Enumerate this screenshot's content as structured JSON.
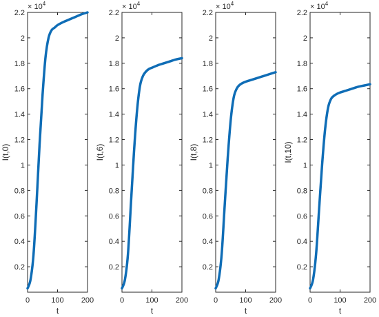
{
  "chart_data": [
    {
      "type": "line",
      "xlabel": "t",
      "ylabel": "I(t,0)",
      "xlim": [
        0,
        200
      ],
      "ylim": [
        0,
        22000
      ],
      "xticks": [
        0,
        100,
        200
      ],
      "yticks": [
        2000,
        4000,
        6000,
        8000,
        10000,
        12000,
        14000,
        16000,
        18000,
        20000,
        22000
      ],
      "ytick_labels": [
        "0.2",
        "0.4",
        "0.6",
        "0.8",
        "1",
        "1.2",
        "1.4",
        "1.6",
        "1.8",
        "2",
        "2.2"
      ],
      "y_exponent_base": "× 10",
      "y_exponent": "4",
      "grid": false,
      "series": [
        {
          "color": "#0f6db6",
          "x": [
            0,
            10,
            20,
            30,
            40,
            50,
            60,
            70,
            80,
            90,
            100,
            120,
            140,
            160,
            180,
            200
          ],
          "y": [
            300,
            1000,
            3000,
            7000,
            11600,
            15500,
            18500,
            20000,
            20600,
            20800,
            21000,
            21250,
            21450,
            21650,
            21850,
            22000
          ]
        }
      ]
    },
    {
      "type": "line",
      "xlabel": "t",
      "ylabel": "I(t,6)",
      "xlim": [
        0,
        200
      ],
      "ylim": [
        0,
        22000
      ],
      "xticks": [
        0,
        100,
        200
      ],
      "yticks": [
        2000,
        4000,
        6000,
        8000,
        10000,
        12000,
        14000,
        16000,
        18000,
        20000,
        22000
      ],
      "ytick_labels": [
        "0.2",
        "0.4",
        "0.6",
        "0.8",
        "1",
        "1.2",
        "1.4",
        "1.6",
        "1.8",
        "2",
        "2.2"
      ],
      "y_exponent_base": "× 10",
      "y_exponent": "4",
      "grid": false,
      "series": [
        {
          "color": "#0f6db6",
          "x": [
            0,
            10,
            20,
            30,
            40,
            50,
            60,
            70,
            80,
            90,
            100,
            120,
            140,
            160,
            180,
            200
          ],
          "y": [
            300,
            1000,
            3000,
            7000,
            11000,
            14200,
            16200,
            17000,
            17350,
            17550,
            17650,
            17850,
            18000,
            18150,
            18300,
            18400
          ]
        }
      ]
    },
    {
      "type": "line",
      "xlabel": "t",
      "ylabel": "I(t,8)",
      "xlim": [
        0,
        200
      ],
      "ylim": [
        0,
        22000
      ],
      "xticks": [
        0,
        100,
        200
      ],
      "yticks": [
        2000,
        4000,
        6000,
        8000,
        10000,
        12000,
        14000,
        16000,
        18000,
        20000,
        22000
      ],
      "ytick_labels": [
        "0.2",
        "0.4",
        "0.6",
        "0.8",
        "1",
        "1.2",
        "1.4",
        "1.6",
        "1.8",
        "2",
        "2.2"
      ],
      "y_exponent_base": "× 10",
      "y_exponent": "4",
      "grid": false,
      "series": [
        {
          "color": "#0f6db6",
          "x": [
            0,
            10,
            20,
            30,
            40,
            50,
            60,
            70,
            80,
            90,
            100,
            120,
            140,
            160,
            180,
            200
          ],
          "y": [
            300,
            1000,
            3000,
            6800,
            10500,
            13500,
            15300,
            16000,
            16300,
            16450,
            16550,
            16700,
            16850,
            17000,
            17150,
            17300
          ]
        }
      ]
    },
    {
      "type": "line",
      "xlabel": "t",
      "ylabel": "I(t,10)",
      "xlim": [
        0,
        200
      ],
      "ylim": [
        0,
        22000
      ],
      "xticks": [
        0,
        100,
        200
      ],
      "yticks": [
        2000,
        4000,
        6000,
        8000,
        10000,
        12000,
        14000,
        16000,
        18000,
        20000,
        22000
      ],
      "ytick_labels": [
        "0.2",
        "0.4",
        "0.6",
        "0.8",
        "1",
        "1.2",
        "1.4",
        "1.6",
        "1.8",
        "2",
        "2.2"
      ],
      "y_exponent_base": "× 10",
      "y_exponent": "4",
      "grid": false,
      "series": [
        {
          "color": "#0f6db6",
          "x": [
            0,
            10,
            20,
            30,
            40,
            50,
            60,
            70,
            80,
            90,
            100,
            120,
            140,
            160,
            180,
            200
          ],
          "y": [
            300,
            1000,
            3000,
            6500,
            10000,
            12800,
            14500,
            15200,
            15450,
            15600,
            15700,
            15850,
            16000,
            16150,
            16250,
            16350
          ]
        }
      ]
    }
  ]
}
